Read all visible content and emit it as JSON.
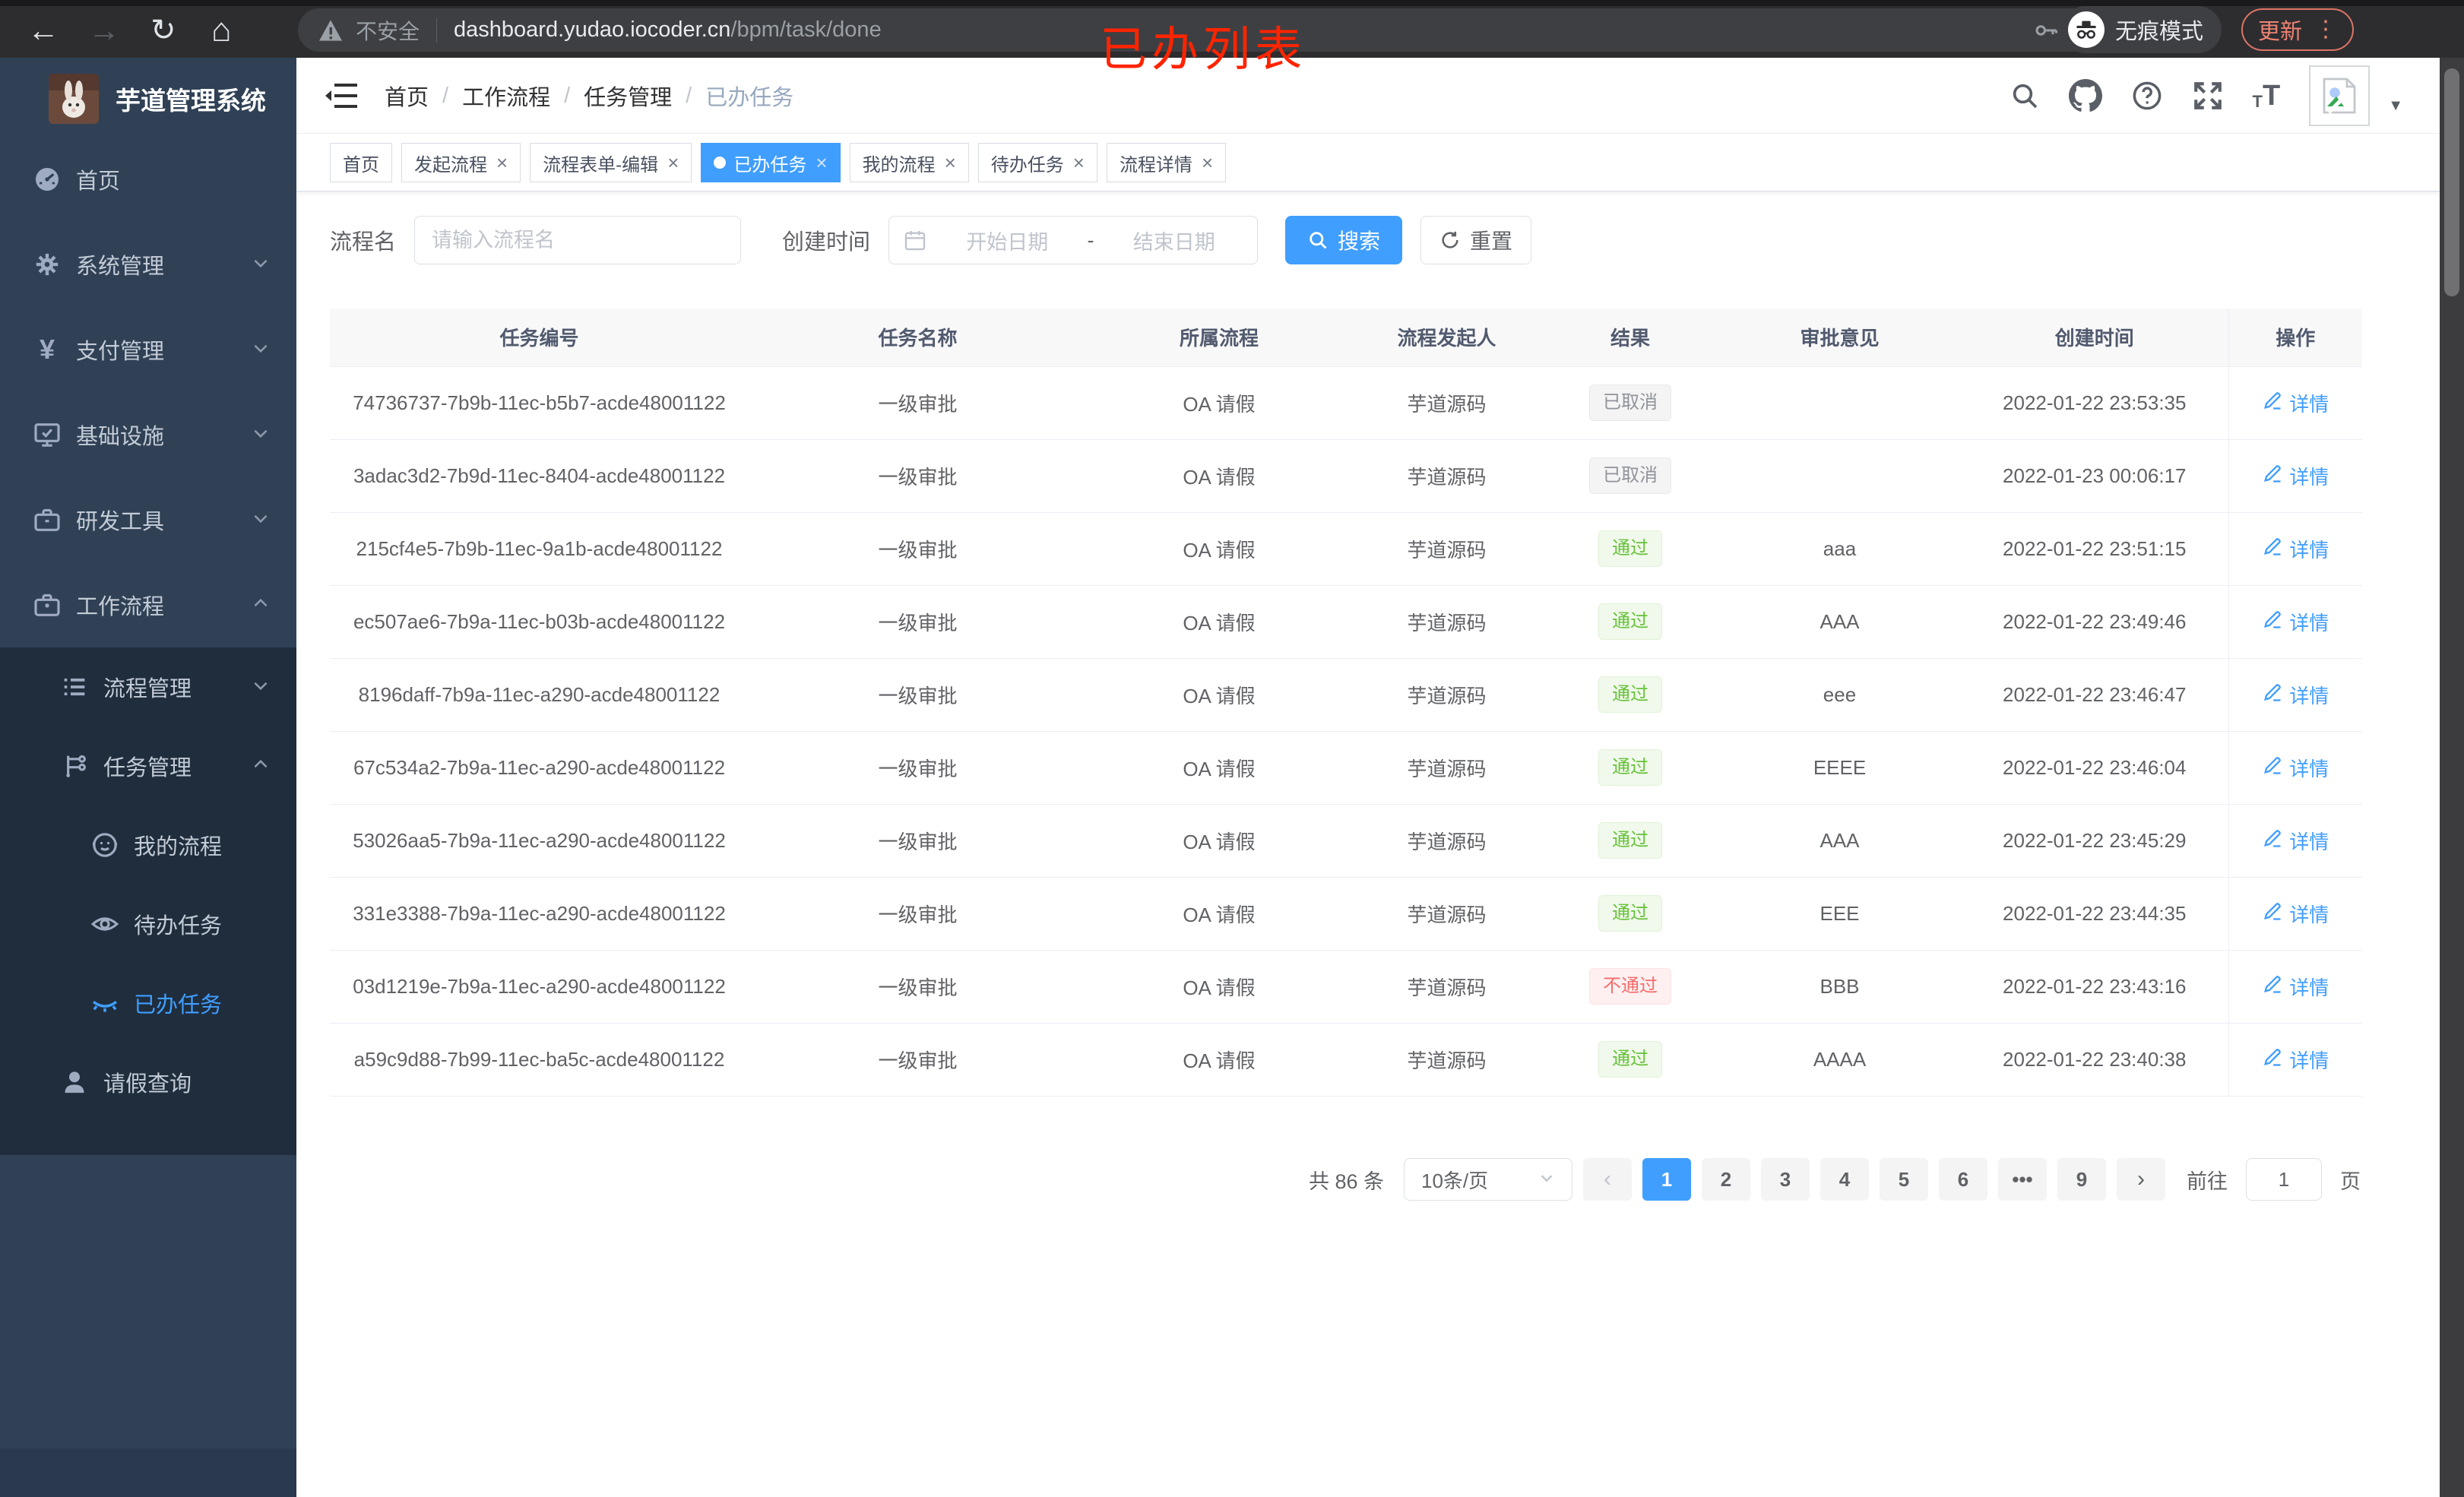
{
  "colors": {
    "accent": "#409eff",
    "success": "#67c23a",
    "danger": "#f56c6c",
    "info": "#909399",
    "sidebar_bg": "#304156",
    "submenu_bg": "#1f2d3d",
    "annotation_red": "#ff2400"
  },
  "browser": {
    "security_label": "不安全",
    "url_host": "dashboard.yudao.iocoder.cn",
    "url_path": "/bpm/task/done",
    "incognito_label": "无痕模式",
    "update_label": "更新",
    "overlay_title": "已办列表"
  },
  "sidebar": {
    "app_title": "芋道管理系统",
    "items": [
      {
        "key": "home",
        "label": "首页",
        "icon": "dashboard-icon",
        "level": 1,
        "chevron": "",
        "active": false
      },
      {
        "key": "system",
        "label": "系统管理",
        "icon": "gear-icon",
        "level": 1,
        "chevron": "down",
        "active": false
      },
      {
        "key": "payment",
        "label": "支付管理",
        "icon": "yen-icon",
        "level": 1,
        "chevron": "down",
        "active": false
      },
      {
        "key": "infra",
        "label": "基础设施",
        "icon": "monitor-icon",
        "level": 1,
        "chevron": "down",
        "active": false
      },
      {
        "key": "devtools",
        "label": "研发工具",
        "icon": "toolbox-icon",
        "level": 1,
        "chevron": "down",
        "active": false
      },
      {
        "key": "workflow",
        "label": "工作流程",
        "icon": "briefcase-icon",
        "level": 1,
        "chevron": "up",
        "active": false
      },
      {
        "key": "process-mgmt",
        "label": "流程管理",
        "icon": "list-icon",
        "level": 2,
        "chevron": "down",
        "active": false
      },
      {
        "key": "task-mgmt",
        "label": "任务管理",
        "icon": "tree-icon",
        "level": 2,
        "chevron": "up",
        "active": false
      },
      {
        "key": "my-process",
        "label": "我的流程",
        "icon": "user-face-icon",
        "level": 3,
        "chevron": "",
        "active": false
      },
      {
        "key": "todo-tasks",
        "label": "待办任务",
        "icon": "eye-open-icon",
        "level": 3,
        "chevron": "",
        "active": false
      },
      {
        "key": "done-tasks",
        "label": "已办任务",
        "icon": "eye-closed-icon",
        "level": 3,
        "chevron": "",
        "active": true
      },
      {
        "key": "leave-query",
        "label": "请假查询",
        "icon": "person-icon",
        "level": 2,
        "chevron": "",
        "active": false
      }
    ]
  },
  "header": {
    "breadcrumb": [
      {
        "label": "首页",
        "current": false
      },
      {
        "label": "工作流程",
        "current": false
      },
      {
        "label": "任务管理",
        "current": false
      },
      {
        "label": "已办任务",
        "current": true
      }
    ]
  },
  "tabs": [
    {
      "key": "home",
      "label": "首页",
      "closable": false,
      "active": false
    },
    {
      "key": "start-process",
      "label": "发起流程",
      "closable": true,
      "active": false
    },
    {
      "key": "form-edit",
      "label": "流程表单-编辑",
      "closable": true,
      "active": false
    },
    {
      "key": "done-tasks",
      "label": "已办任务",
      "closable": true,
      "active": true
    },
    {
      "key": "my-process",
      "label": "我的流程",
      "closable": true,
      "active": false
    },
    {
      "key": "todo-tasks",
      "label": "待办任务",
      "closable": true,
      "active": false
    },
    {
      "key": "process-detail",
      "label": "流程详情",
      "closable": true,
      "active": false
    }
  ],
  "filters": {
    "name_label": "流程名",
    "name_placeholder": "请输入流程名",
    "time_label": "创建时间",
    "start_placeholder": "开始日期",
    "range_separator": "-",
    "end_placeholder": "结束日期",
    "search_label": "搜索",
    "reset_label": "重置"
  },
  "table": {
    "columns": [
      "任务编号",
      "任务名称",
      "所属流程",
      "流程发起人",
      "结果",
      "审批意见",
      "创建时间",
      "操作"
    ],
    "action_label": "详情",
    "rows": [
      {
        "id": "74736737-7b9b-11ec-b5b7-acde48001122",
        "name": "一级审批",
        "process": "OA 请假",
        "starter": "芋道源码",
        "result": "已取消",
        "result_type": "info",
        "opinion": "",
        "created": "2022-01-22 23:53:35"
      },
      {
        "id": "3adac3d2-7b9d-11ec-8404-acde48001122",
        "name": "一级审批",
        "process": "OA 请假",
        "starter": "芋道源码",
        "result": "已取消",
        "result_type": "info",
        "opinion": "",
        "created": "2022-01-23 00:06:17"
      },
      {
        "id": "215cf4e5-7b9b-11ec-9a1b-acde48001122",
        "name": "一级审批",
        "process": "OA 请假",
        "starter": "芋道源码",
        "result": "通过",
        "result_type": "success",
        "opinion": "aaa",
        "created": "2022-01-22 23:51:15"
      },
      {
        "id": "ec507ae6-7b9a-11ec-b03b-acde48001122",
        "name": "一级审批",
        "process": "OA 请假",
        "starter": "芋道源码",
        "result": "通过",
        "result_type": "success",
        "opinion": "AAA",
        "created": "2022-01-22 23:49:46"
      },
      {
        "id": "8196daff-7b9a-11ec-a290-acde48001122",
        "name": "一级审批",
        "process": "OA 请假",
        "starter": "芋道源码",
        "result": "通过",
        "result_type": "success",
        "opinion": "eee",
        "created": "2022-01-22 23:46:47"
      },
      {
        "id": "67c534a2-7b9a-11ec-a290-acde48001122",
        "name": "一级审批",
        "process": "OA 请假",
        "starter": "芋道源码",
        "result": "通过",
        "result_type": "success",
        "opinion": "EEEE",
        "created": "2022-01-22 23:46:04"
      },
      {
        "id": "53026aa5-7b9a-11ec-a290-acde48001122",
        "name": "一级审批",
        "process": "OA 请假",
        "starter": "芋道源码",
        "result": "通过",
        "result_type": "success",
        "opinion": "AAA",
        "created": "2022-01-22 23:45:29"
      },
      {
        "id": "331e3388-7b9a-11ec-a290-acde48001122",
        "name": "一级审批",
        "process": "OA 请假",
        "starter": "芋道源码",
        "result": "通过",
        "result_type": "success",
        "opinion": "EEE",
        "created": "2022-01-22 23:44:35"
      },
      {
        "id": "03d1219e-7b9a-11ec-a290-acde48001122",
        "name": "一级审批",
        "process": "OA 请假",
        "starter": "芋道源码",
        "result": "不通过",
        "result_type": "danger",
        "opinion": "BBB",
        "created": "2022-01-22 23:43:16"
      },
      {
        "id": "a59c9d88-7b99-11ec-ba5c-acde48001122",
        "name": "一级审批",
        "process": "OA 请假",
        "starter": "芋道源码",
        "result": "通过",
        "result_type": "success",
        "opinion": "AAAA",
        "created": "2022-01-22 23:40:38"
      }
    ]
  },
  "pagination": {
    "total_label": "共 86 条",
    "page_size": "10条/页",
    "pages": [
      "1",
      "2",
      "3",
      "4",
      "5",
      "6",
      "•••",
      "9"
    ],
    "active_page": "1",
    "goto_label": "前往",
    "goto_value": "1",
    "goto_suffix": "页"
  }
}
